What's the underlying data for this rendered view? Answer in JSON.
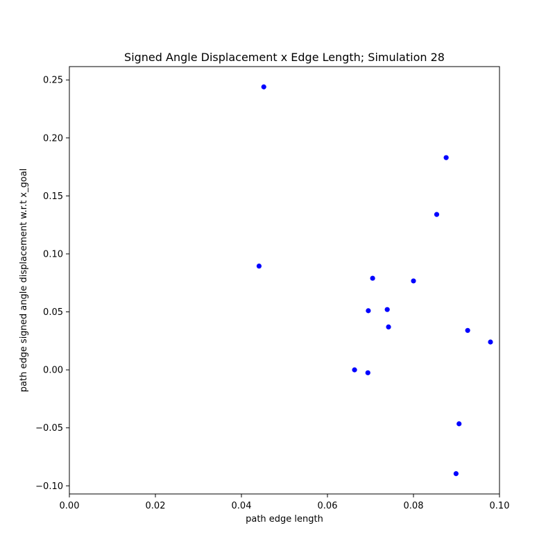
{
  "chart_data": {
    "type": "scatter",
    "title": "Signed Angle Displacement x Edge Length; Simulation 28",
    "xlabel": "path edge length",
    "ylabel": "path edge signed angle displacement w.r.t x_goal",
    "xlim": [
      0.0,
      0.1
    ],
    "ylim": [
      -0.107,
      0.2615
    ],
    "xticks": [
      0.0,
      0.02,
      0.04,
      0.06,
      0.08,
      0.1
    ],
    "xtick_labels": [
      "0.00",
      "0.02",
      "0.04",
      "0.06",
      "0.08",
      "0.10"
    ],
    "yticks": [
      -0.1,
      -0.05,
      0.0,
      0.05,
      0.1,
      0.15,
      0.2,
      0.25
    ],
    "ytick_labels": [
      "−0.10",
      "−0.05",
      "0.00",
      "0.05",
      "0.10",
      "0.15",
      "0.20",
      "0.25"
    ],
    "grid": false,
    "marker_color": "#0000ff",
    "series": [
      {
        "points": [
          [
            0.0452,
            0.244
          ],
          [
            0.0876,
            0.183
          ],
          [
            0.0854,
            0.134
          ],
          [
            0.0441,
            0.0895
          ],
          [
            0.0705,
            0.079
          ],
          [
            0.08,
            0.0767
          ],
          [
            0.0695,
            0.051
          ],
          [
            0.0739,
            0.052
          ],
          [
            0.0742,
            0.037
          ],
          [
            0.0926,
            0.034
          ],
          [
            0.0979,
            0.024
          ],
          [
            0.0663,
            0.0
          ],
          [
            0.0694,
            -0.0025
          ],
          [
            0.0906,
            -0.0465
          ],
          [
            0.0899,
            -0.0895
          ]
        ]
      }
    ]
  }
}
